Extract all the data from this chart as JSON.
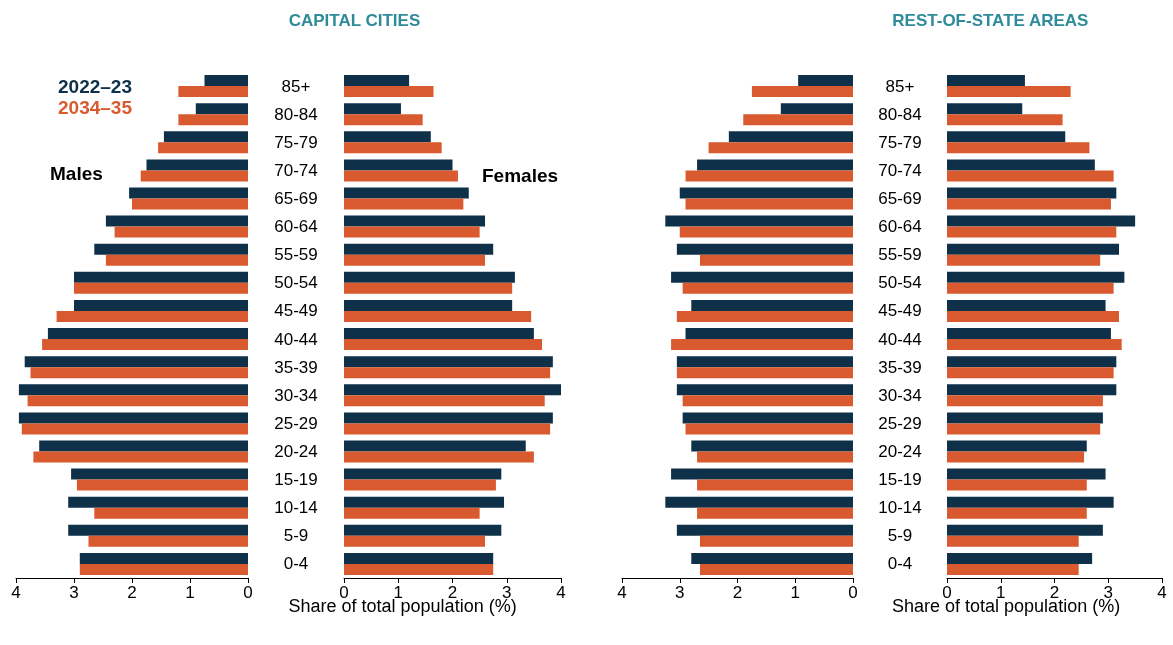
{
  "chart_data": [
    {
      "type": "bar",
      "orientation": "horizontal",
      "xlabel": "Share of total population (%)",
      "legend": "top left",
      "tick_labels": "x",
      "annotations": [
        "Males"
      ],
      "categories": [
        null,
        null,
        null,
        null,
        null,
        null,
        null,
        null,
        null,
        null,
        null,
        null,
        null,
        null,
        null,
        null,
        null,
        null
      ],
      "xlim": [
        4,
        0
      ],
      "xticks": [
        4,
        3,
        2,
        1,
        0
      ],
      "series": [
        {
          "name": "2022–23",
          "color": "#0e3048",
          "values": [
            0.75,
            0.9,
            1.45,
            1.75,
            2.05,
            2.45,
            2.65,
            3.0,
            3.0,
            3.45,
            3.85,
            3.95,
            3.95,
            3.6,
            3.05,
            3.1,
            3.1,
            2.9
          ]
        },
        {
          "name": "2034–35",
          "color": "#d85a2e",
          "values": [
            1.2,
            1.2,
            1.55,
            1.85,
            2.0,
            2.3,
            2.45,
            3.0,
            3.3,
            3.55,
            3.75,
            3.8,
            3.9,
            3.7,
            2.95,
            2.65,
            2.75,
            2.9
          ]
        }
      ]
    },
    {
      "type": "bar",
      "orientation": "horizontal",
      "title": "CAPITAL CITIES",
      "annotations": [
        "Females"
      ],
      "categories": [
        "85+",
        "80-84",
        "75-79",
        "70-74",
        "65-69",
        "60-64",
        "55-59",
        "50-54",
        "45-49",
        "40-44",
        "35-39",
        "30-34",
        "25-29",
        "20-24",
        "15-19",
        "10-14",
        "5-9",
        "0-4"
      ],
      "xlim": [
        0,
        4
      ],
      "xticks": [
        0,
        1,
        2,
        3,
        4
      ],
      "series": [
        {
          "color": "#0e3048",
          "values": [
            1.2,
            1.05,
            1.6,
            2.0,
            2.3,
            2.6,
            2.75,
            3.15,
            3.1,
            3.5,
            3.85,
            4.0,
            3.85,
            3.35,
            2.9,
            2.95,
            2.9,
            2.75
          ]
        },
        {
          "color": "#d85a2e",
          "values": [
            1.65,
            1.45,
            1.8,
            2.1,
            2.2,
            2.5,
            2.6,
            3.1,
            3.45,
            3.65,
            3.8,
            3.7,
            3.8,
            3.5,
            2.8,
            2.5,
            2.6,
            2.75
          ]
        }
      ]
    },
    {
      "type": "bar",
      "orientation": "horizontal",
      "xlabel": "Share of total population (%)",
      "tick_labels": "x",
      "categories": [
        null,
        null,
        null,
        null,
        null,
        null,
        null,
        null,
        null,
        null,
        null,
        null,
        null,
        null,
        null,
        null,
        null,
        null
      ],
      "xlim": [
        4,
        0
      ],
      "xticks": [
        4,
        3,
        2,
        1,
        0
      ],
      "series": [
        {
          "color": "#0e3048",
          "values": [
            0.95,
            1.25,
            2.15,
            2.7,
            3.0,
            3.25,
            3.05,
            3.15,
            2.8,
            2.9,
            3.05,
            3.05,
            2.95,
            2.8,
            3.15,
            3.25,
            3.05,
            2.8
          ]
        },
        {
          "color": "#d85a2e",
          "values": [
            1.75,
            1.9,
            2.5,
            2.9,
            2.9,
            3.0,
            2.65,
            2.95,
            3.05,
            3.15,
            3.05,
            2.95,
            2.9,
            2.7,
            2.7,
            2.7,
            2.65,
            2.65
          ]
        }
      ]
    },
    {
      "type": "bar",
      "orientation": "horizontal",
      "title": "REST-OF-STATE AREAS",
      "categories": [
        "85+",
        "80-84",
        "75-79",
        "70-74",
        "65-69",
        "60-64",
        "55-59",
        "50-54",
        "45-49",
        "40-44",
        "35-39",
        "30-34",
        "25-29",
        "20-24",
        "15-19",
        "10-14",
        "5-9",
        "0-4"
      ],
      "xlim": [
        0,
        4
      ],
      "xticks": [
        0,
        1,
        2,
        3,
        4
      ],
      "series": [
        {
          "color": "#0e3048",
          "values": [
            1.45,
            1.4,
            2.2,
            2.75,
            3.15,
            3.5,
            3.2,
            3.3,
            2.95,
            3.05,
            3.15,
            3.15,
            2.9,
            2.6,
            2.95,
            3.1,
            2.9,
            2.7
          ]
        },
        {
          "color": "#d85a2e",
          "values": [
            2.3,
            2.15,
            2.65,
            3.1,
            3.05,
            3.15,
            2.85,
            3.1,
            3.2,
            3.25,
            3.1,
            2.9,
            2.85,
            2.55,
            2.6,
            2.6,
            2.45,
            2.45
          ]
        }
      ]
    }
  ]
}
